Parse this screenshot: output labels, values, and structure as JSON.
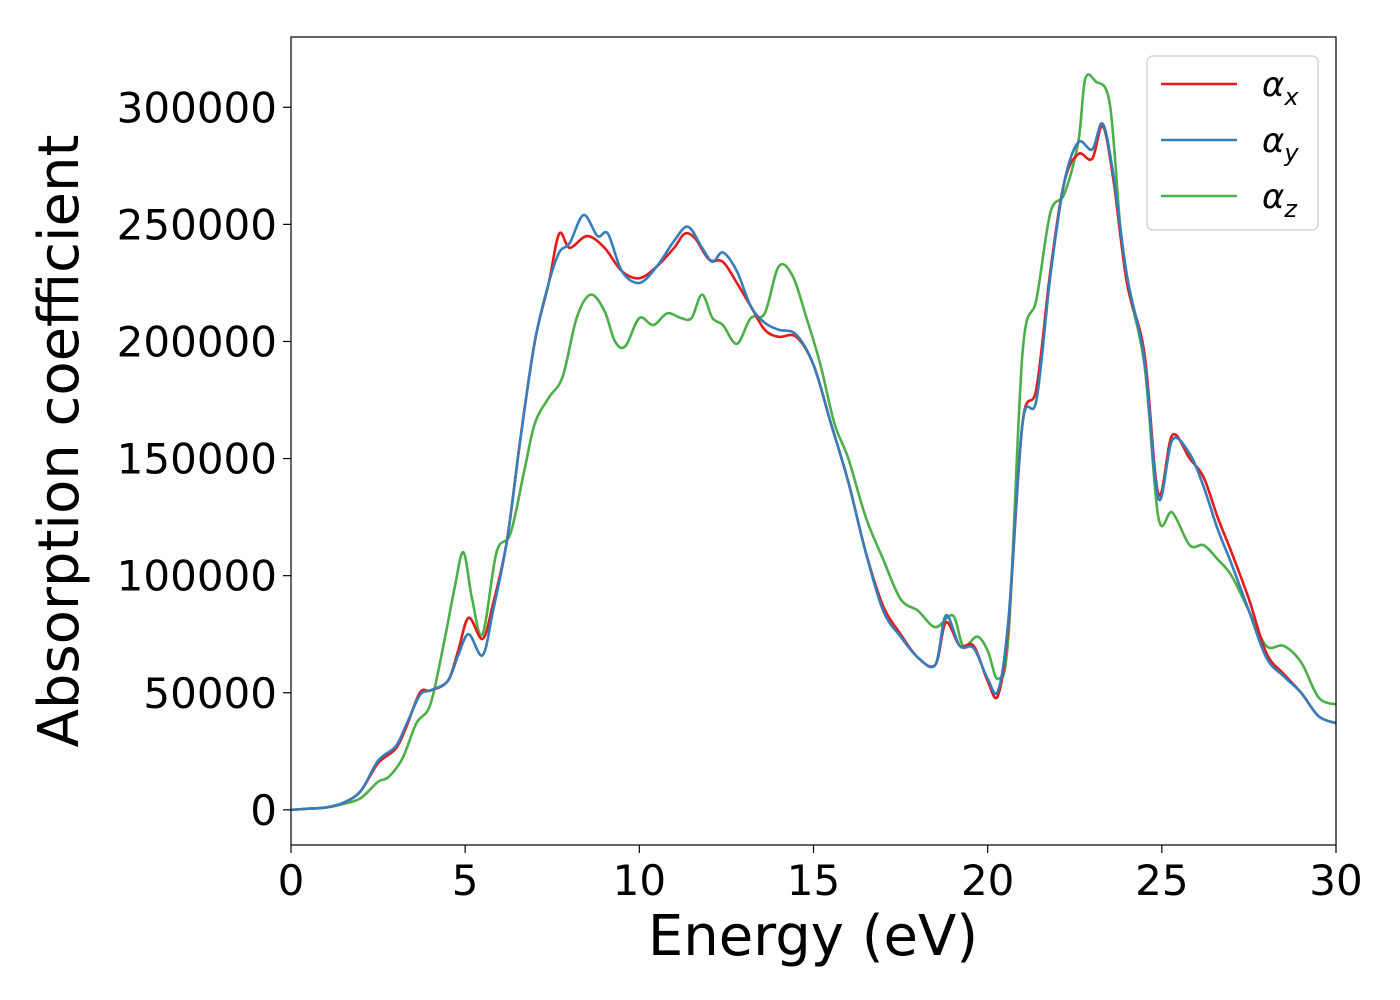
{
  "chart_data": {
    "type": "line",
    "xlabel": "Energy (eV)",
    "ylabel": "Absorption coefficient",
    "xlim": [
      0,
      30
    ],
    "ylim": [
      -15000,
      330000
    ],
    "xticks": [
      0,
      5,
      10,
      15,
      20,
      25,
      30
    ],
    "xtick_labels": [
      "0",
      "5",
      "10",
      "15",
      "20",
      "25",
      "30"
    ],
    "yticks": [
      0,
      50000,
      100000,
      150000,
      200000,
      250000,
      300000
    ],
    "ytick_labels": [
      "0",
      "50000",
      "100000",
      "150000",
      "200000",
      "250000",
      "300000"
    ],
    "grid": false,
    "legend_position": "top-right",
    "series": [
      {
        "name": "αx",
        "symbol": "α",
        "subscript": "x",
        "color": "#e41a1c",
        "x": [
          0,
          0.5,
          1,
          1.5,
          2,
          2.5,
          3,
          3.3,
          3.7,
          4,
          4.5,
          4.8,
          5.1,
          5.5,
          5.8,
          6.2,
          6.6,
          7,
          7.4,
          7.7,
          8,
          8.5,
          9,
          9.5,
          10,
          10.5,
          11,
          11.3,
          11.6,
          12,
          12.4,
          12.8,
          13.2,
          13.6,
          14,
          14.5,
          15,
          15.5,
          16,
          16.5,
          17,
          17.5,
          18,
          18.5,
          18.8,
          19.2,
          19.6,
          20,
          20.3,
          20.6,
          21,
          21.4,
          21.8,
          22.2,
          22.6,
          23,
          23.3,
          23.6,
          24,
          24.5,
          24.9,
          25.3,
          25.8,
          26.2,
          26.6,
          27,
          27.5,
          28,
          28.5,
          29,
          29.5,
          30
        ],
        "y": [
          0,
          500,
          1000,
          3000,
          8000,
          20000,
          26000,
          35000,
          50000,
          51000,
          55000,
          68000,
          82000,
          73000,
          88000,
          115000,
          160000,
          200000,
          225000,
          246000,
          240000,
          245000,
          240000,
          230000,
          227000,
          232000,
          240000,
          246000,
          244000,
          235000,
          234000,
          225000,
          215000,
          205000,
          202000,
          202000,
          190000,
          165000,
          140000,
          110000,
          87000,
          75000,
          65000,
          62000,
          80000,
          70000,
          70000,
          55000,
          49000,
          80000,
          165000,
          180000,
          230000,
          268000,
          280000,
          278000,
          292000,
          270000,
          225000,
          195000,
          135000,
          160000,
          150000,
          142000,
          125000,
          110000,
          90000,
          67000,
          58000,
          50000,
          40000,
          37000
        ]
      },
      {
        "name": "αy",
        "symbol": "α",
        "subscript": "y",
        "color": "#377eb8",
        "x": [
          0,
          0.5,
          1,
          1.5,
          2,
          2.5,
          3,
          3.3,
          3.7,
          4,
          4.5,
          4.8,
          5.1,
          5.5,
          5.8,
          6.2,
          6.6,
          7,
          7.4,
          7.7,
          8,
          8.4,
          8.8,
          9.1,
          9.5,
          10,
          10.5,
          11,
          11.4,
          11.8,
          12.1,
          12.4,
          12.8,
          13.2,
          13.6,
          14,
          14.5,
          15,
          15.5,
          16,
          16.5,
          17,
          17.5,
          18,
          18.5,
          18.8,
          19.2,
          19.6,
          20,
          20.3,
          20.6,
          21,
          21.4,
          21.8,
          22.2,
          22.6,
          23,
          23.3,
          23.6,
          24,
          24.5,
          24.9,
          25.3,
          25.8,
          26.2,
          26.6,
          27,
          27.5,
          28,
          28.5,
          29,
          29.5,
          30
        ],
        "y": [
          0,
          500,
          1000,
          3000,
          8000,
          21000,
          27000,
          36000,
          49000,
          51000,
          55000,
          66000,
          75000,
          66000,
          85000,
          115000,
          160000,
          200000,
          225000,
          238000,
          242000,
          254000,
          245000,
          246000,
          230000,
          225000,
          232000,
          243000,
          249000,
          240000,
          234000,
          238000,
          230000,
          215000,
          208000,
          205000,
          203000,
          190000,
          165000,
          140000,
          110000,
          85000,
          74000,
          65000,
          62000,
          83000,
          70000,
          69000,
          56000,
          51000,
          82000,
          165000,
          175000,
          228000,
          268000,
          285000,
          282000,
          293000,
          272000,
          228000,
          192000,
          133000,
          158000,
          152000,
          138000,
          120000,
          105000,
          85000,
          65000,
          57000,
          50000,
          40000,
          37000
        ]
      },
      {
        "name": "αz",
        "symbol": "α",
        "subscript": "z",
        "color": "#4daf4a",
        "x": [
          0,
          0.5,
          1,
          1.5,
          2,
          2.5,
          2.8,
          3.2,
          3.6,
          4,
          4.4,
          4.7,
          4.95,
          5.2,
          5.5,
          5.9,
          6.3,
          6.7,
          7,
          7.4,
          7.8,
          8.2,
          8.6,
          9,
          9.3,
          9.6,
          10,
          10.4,
          10.8,
          11.2,
          11.5,
          11.8,
          12.1,
          12.4,
          12.8,
          13.2,
          13.6,
          14,
          14.4,
          14.8,
          15.2,
          15.6,
          16,
          16.5,
          17,
          17.5,
          18,
          18.5,
          19,
          19.3,
          19.7,
          20,
          20.3,
          20.6,
          21,
          21.4,
          21.8,
          22.2,
          22.6,
          22.8,
          23.1,
          23.5,
          23.8,
          24,
          24.5,
          24.9,
          25.3,
          25.8,
          26.2,
          26.6,
          27,
          27.5,
          28,
          28.5,
          29,
          29.5,
          30
        ],
        "y": [
          0,
          500,
          1000,
          2500,
          5000,
          12000,
          14000,
          22000,
          37000,
          45000,
          72000,
          95000,
          110000,
          90000,
          75000,
          110000,
          118000,
          145000,
          165000,
          176000,
          185000,
          210000,
          220000,
          213000,
          200000,
          198000,
          210000,
          207000,
          212000,
          210000,
          210000,
          220000,
          210000,
          207000,
          199000,
          210000,
          212000,
          232000,
          228000,
          210000,
          190000,
          165000,
          150000,
          125000,
          107000,
          90000,
          85000,
          78000,
          83000,
          70000,
          74000,
          68000,
          56000,
          75000,
          195000,
          218000,
          255000,
          263000,
          285000,
          312000,
          311000,
          302000,
          250000,
          225000,
          190000,
          125000,
          127000,
          113000,
          113000,
          107000,
          100000,
          85000,
          70000,
          70000,
          63000,
          48000,
          45000
        ]
      }
    ]
  }
}
